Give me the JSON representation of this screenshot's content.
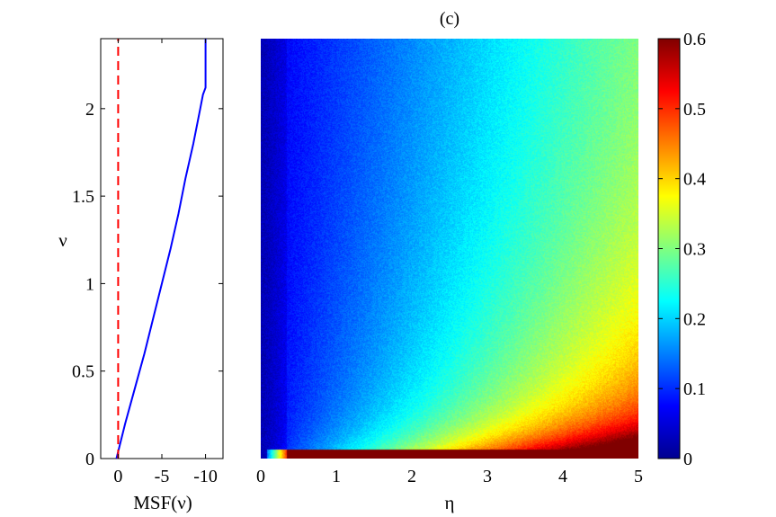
{
  "chart_data": [
    {
      "type": "line",
      "title": "",
      "xlabel": "MSF(ν)",
      "ylabel": "ν",
      "xlim": [
        2,
        -12
      ],
      "ylim": [
        0,
        2.4
      ],
      "xticks": [
        0,
        -5,
        -10
      ],
      "xtick_labels": [
        "0",
        "-5",
        "-10"
      ],
      "yticks": [
        0,
        0.5,
        1,
        1.5,
        2
      ],
      "ytick_labels": [
        "0",
        "0.5",
        "1",
        "1.5",
        "2"
      ],
      "grid": false,
      "series": [
        {
          "color": "#0000ff",
          "style": "solid",
          "points": [
            [
              0.2,
              0
            ],
            [
              -0.8,
              0.2
            ],
            [
              -1.9,
              0.4
            ],
            [
              -3.0,
              0.6
            ],
            [
              -4.0,
              0.8
            ],
            [
              -5.0,
              1.0
            ],
            [
              -6.0,
              1.2
            ],
            [
              -6.9,
              1.4
            ],
            [
              -7.7,
              1.6
            ],
            [
              -8.6,
              1.8
            ],
            [
              -9.4,
              2.0
            ],
            [
              -9.7,
              2.08
            ],
            [
              -10.0,
              2.12
            ],
            [
              -10.0,
              2.4
            ]
          ]
        },
        {
          "color": "#ff0000",
          "style": "dashed",
          "points": [
            [
              0,
              0
            ],
            [
              0,
              2.4
            ]
          ]
        }
      ]
    },
    {
      "type": "heatmap",
      "title": "(c)",
      "xlabel": "η",
      "ylabel": "",
      "xlim": [
        0,
        5
      ],
      "ylim": [
        0,
        2.4
      ],
      "xticks": [
        0,
        1,
        2,
        3,
        4,
        5
      ],
      "xtick_labels": [
        "0",
        "1",
        "2",
        "3",
        "4",
        "5"
      ],
      "colormap": "jet",
      "colorbar": {
        "clim": [
          0,
          0.6
        ],
        "ticks": [
          0,
          0.1,
          0.2,
          0.3,
          0.4,
          0.5,
          0.6
        ],
        "tick_labels": [
          "0",
          "0.1",
          "0.2",
          "0.3",
          "0.4",
          "0.5",
          "0.6"
        ]
      }
    }
  ]
}
